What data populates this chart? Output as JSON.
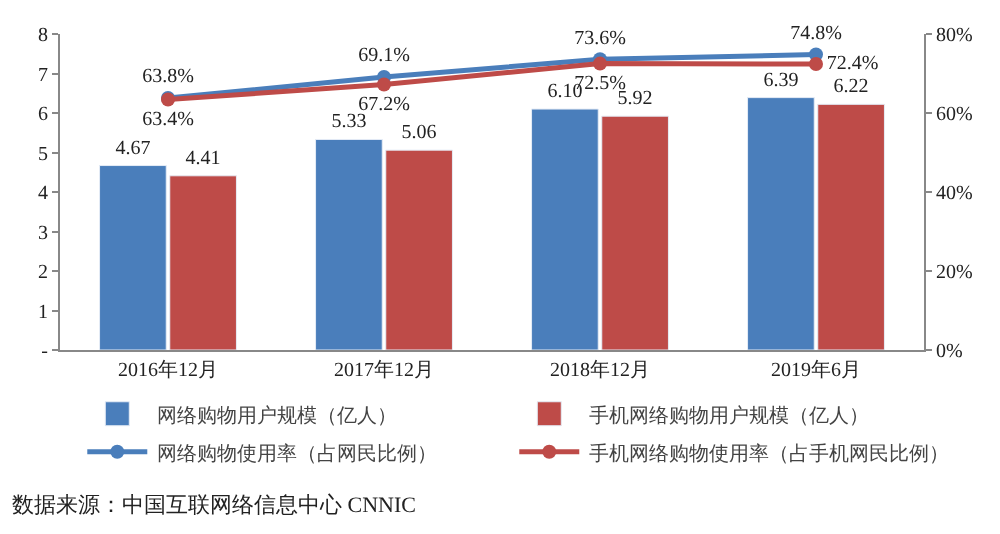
{
  "chart_data": {
    "type": "bar",
    "categories": [
      "2016年12月",
      "2017年12月",
      "2018年12月",
      "2019年6月"
    ],
    "series": [
      {
        "name": "网络购物用户规模（亿人）",
        "color": "#4a7ebb",
        "values": [
          4.67,
          5.33,
          6.1,
          6.39
        ],
        "value_labels": [
          "4.67",
          "5.33",
          "6.10",
          "6.39"
        ]
      },
      {
        "name": "手机网络购物用户规模（亿人）",
        "color": "#be4b48",
        "values": [
          4.41,
          5.06,
          5.92,
          6.22
        ],
        "value_labels": [
          "4.41",
          "5.06",
          "5.92",
          "6.22"
        ]
      },
      {
        "name": "网络购物使用率（占网民比例）",
        "type": "line",
        "axis": "y2",
        "color": "#4a7ebb",
        "values": [
          63.8,
          69.1,
          73.6,
          74.8
        ],
        "value_labels": [
          "63.8%",
          "69.1%",
          "73.6%",
          "74.8%"
        ]
      },
      {
        "name": "手机网络购物使用率（占手机网民比例）",
        "type": "line",
        "axis": "y2",
        "color": "#be4b48",
        "values": [
          63.4,
          67.2,
          72.5,
          72.4
        ],
        "value_labels": [
          "63.4%",
          "67.2%",
          "72.5%",
          "72.4%"
        ]
      }
    ],
    "ylim": [
      0,
      8
    ],
    "yticks": [
      {
        "value": 0,
        "label": "-"
      },
      1,
      2,
      3,
      4,
      5,
      6,
      7,
      8
    ],
    "y2lim": [
      0,
      80
    ],
    "y2ticks": [
      {
        "value": 0,
        "label": "0%"
      },
      {
        "value": 20,
        "label": "20%"
      },
      {
        "value": 40,
        "label": "40%"
      },
      {
        "value": 60,
        "label": "60%"
      },
      {
        "value": 80,
        "label": "80%"
      }
    ],
    "marker": "circle",
    "line_style": "solid",
    "legend": "bottom",
    "annotations": [
      "数据来源：中国互联网络信息中心 CNNIC"
    ]
  }
}
